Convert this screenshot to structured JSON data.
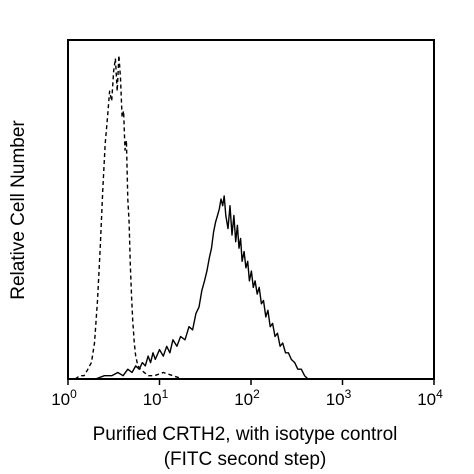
{
  "chart_data": {
    "type": "histogram",
    "title": "",
    "xlabel_line1": "Purified CRTH2, with isotype control",
    "xlabel_line2": "(FITC second step)",
    "ylabel": "Relative Cell Number",
    "x_scale": "log",
    "xlim": [
      1,
      10000
    ],
    "ylim": [
      0,
      1
    ],
    "grid": false,
    "legend": "none",
    "x_ticks": [
      {
        "value": 1,
        "base": "10",
        "exp": "0"
      },
      {
        "value": 10,
        "base": "10",
        "exp": "1"
      },
      {
        "value": 100,
        "base": "10",
        "exp": "2"
      },
      {
        "value": 1000,
        "base": "10",
        "exp": "3"
      },
      {
        "value": 10000,
        "base": "10",
        "exp": "4"
      }
    ],
    "series": [
      {
        "style": "dashed",
        "color": "#000000",
        "points": [
          [
            1.2,
            0.0
          ],
          [
            1.35,
            0.01
          ],
          [
            1.5,
            0.01
          ],
          [
            1.65,
            0.03
          ],
          [
            1.8,
            0.05
          ],
          [
            1.95,
            0.11
          ],
          [
            2.1,
            0.24
          ],
          [
            2.25,
            0.4
          ],
          [
            2.4,
            0.58
          ],
          [
            2.55,
            0.72
          ],
          [
            2.7,
            0.8
          ],
          [
            2.85,
            0.88
          ],
          [
            3.0,
            0.85
          ],
          [
            3.15,
            0.94
          ],
          [
            3.3,
            0.98
          ],
          [
            3.45,
            0.88
          ],
          [
            3.6,
            0.99
          ],
          [
            3.75,
            0.92
          ],
          [
            3.9,
            0.8
          ],
          [
            4.05,
            0.82
          ],
          [
            4.2,
            0.7
          ],
          [
            4.35,
            0.73
          ],
          [
            4.5,
            0.55
          ],
          [
            4.65,
            0.48
          ],
          [
            4.8,
            0.35
          ],
          [
            4.95,
            0.25
          ],
          [
            5.1,
            0.18
          ],
          [
            5.3,
            0.11
          ],
          [
            5.5,
            0.07
          ],
          [
            5.8,
            0.04
          ],
          [
            6.2,
            0.03
          ],
          [
            6.8,
            0.02
          ],
          [
            7.6,
            0.01
          ],
          [
            8.8,
            0.01
          ],
          [
            11,
            0.02
          ],
          [
            14,
            0.01
          ],
          [
            18,
            0.0
          ]
        ]
      },
      {
        "style": "solid",
        "color": "#000000",
        "points": [
          [
            2.0,
            0.0
          ],
          [
            2.5,
            0.01
          ],
          [
            3.0,
            0.01
          ],
          [
            3.5,
            0.02
          ],
          [
            4.0,
            0.01
          ],
          [
            4.5,
            0.03
          ],
          [
            5.0,
            0.02
          ],
          [
            5.5,
            0.04
          ],
          [
            6.0,
            0.03
          ],
          [
            6.5,
            0.05
          ],
          [
            7.0,
            0.04
          ],
          [
            7.5,
            0.07
          ],
          [
            8.0,
            0.05
          ],
          [
            8.5,
            0.08
          ],
          [
            9.0,
            0.06
          ],
          [
            10,
            0.09
          ],
          [
            11,
            0.07
          ],
          [
            12,
            0.1
          ],
          [
            13,
            0.08
          ],
          [
            14,
            0.12
          ],
          [
            15.5,
            0.1
          ],
          [
            17,
            0.13
          ],
          [
            19,
            0.12
          ],
          [
            21,
            0.16
          ],
          [
            23,
            0.15
          ],
          [
            25,
            0.2
          ],
          [
            27,
            0.22
          ],
          [
            29,
            0.27
          ],
          [
            31,
            0.3
          ],
          [
            33,
            0.33
          ],
          [
            35,
            0.37
          ],
          [
            37,
            0.4
          ],
          [
            39,
            0.45
          ],
          [
            41,
            0.48
          ],
          [
            43,
            0.5
          ],
          [
            45,
            0.52
          ],
          [
            47,
            0.55
          ],
          [
            49,
            0.53
          ],
          [
            51,
            0.56
          ],
          [
            53,
            0.5
          ],
          [
            56,
            0.46
          ],
          [
            59,
            0.53
          ],
          [
            62,
            0.44
          ],
          [
            65,
            0.5
          ],
          [
            68,
            0.42
          ],
          [
            71,
            0.47
          ],
          [
            74,
            0.4
          ],
          [
            77,
            0.43
          ],
          [
            80,
            0.36
          ],
          [
            84,
            0.39
          ],
          [
            88,
            0.34
          ],
          [
            92,
            0.36
          ],
          [
            96,
            0.3
          ],
          [
            101,
            0.33
          ],
          [
            106,
            0.28
          ],
          [
            111,
            0.3
          ],
          [
            117,
            0.26
          ],
          [
            123,
            0.28
          ],
          [
            130,
            0.23
          ],
          [
            137,
            0.24
          ],
          [
            145,
            0.19
          ],
          [
            153,
            0.21
          ],
          [
            162,
            0.16
          ],
          [
            172,
            0.17
          ],
          [
            183,
            0.13
          ],
          [
            195,
            0.14
          ],
          [
            208,
            0.1
          ],
          [
            222,
            0.11
          ],
          [
            238,
            0.08
          ],
          [
            256,
            0.08
          ],
          [
            276,
            0.06
          ],
          [
            300,
            0.05
          ],
          [
            325,
            0.03
          ],
          [
            355,
            0.03
          ],
          [
            385,
            0.01
          ],
          [
            420,
            0.0
          ]
        ]
      }
    ]
  }
}
